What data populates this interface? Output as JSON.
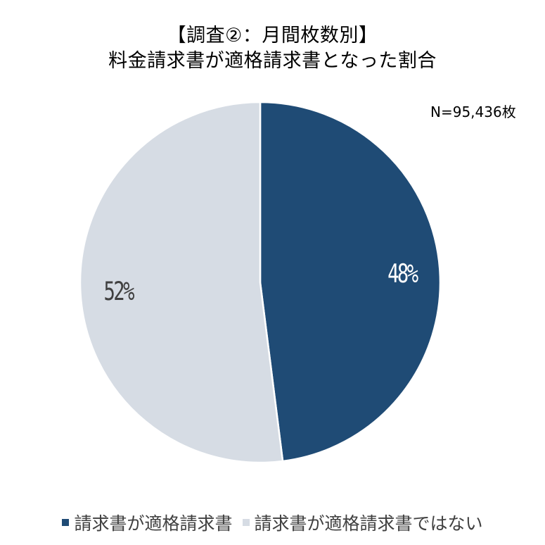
{
  "title_line1": "【調査②：月間枚数別】",
  "title_line2": "料金請求書が適格請求書となった割合",
  "note": "N=95,436枚",
  "colors": {
    "series1": "#1f4b75",
    "series2": "#d6dce4",
    "label_series1": "#ffffff",
    "label_series2": "#404040"
  },
  "chart_data": {
    "type": "pie",
    "categories": [
      "請求書が適格請求書",
      "請求書が適格請求書ではない"
    ],
    "values": [
      48,
      52
    ],
    "data_labels": [
      "48%",
      "52%"
    ],
    "legend": {
      "placement": "bottom",
      "entries": [
        "請求書が適格請求書",
        "請求書が適格請求書ではない"
      ]
    }
  }
}
